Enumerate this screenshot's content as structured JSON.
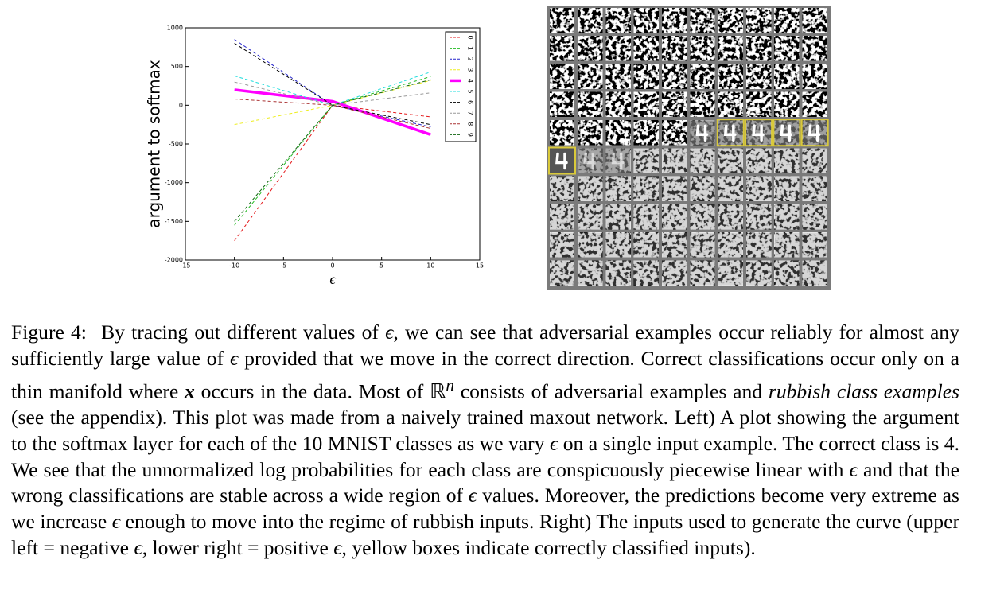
{
  "chart_data": {
    "type": "line",
    "ylabel": "argument to softmax",
    "xlabel": "ϵ",
    "x": [
      -10,
      0,
      10
    ],
    "series": [
      {
        "name": "0",
        "color": "#e41a1c",
        "values": [
          -1750,
          0,
          -150
        ]
      },
      {
        "name": "1",
        "color": "#22bb22",
        "values": [
          -1550,
          0,
          370
        ]
      },
      {
        "name": "2",
        "color": "#2222cc",
        "values": [
          850,
          0,
          -280
        ]
      },
      {
        "name": "3",
        "color": "#eeee22",
        "values": [
          -250,
          0,
          320
        ]
      },
      {
        "name": "4",
        "color": "#ff00ff",
        "values": [
          200,
          50,
          -380
        ]
      },
      {
        "name": "5",
        "color": "#22dddd",
        "values": [
          380,
          0,
          430
        ]
      },
      {
        "name": "6",
        "color": "#000000",
        "values": [
          800,
          0,
          -250
        ]
      },
      {
        "name": "7",
        "color": "#999999",
        "values": [
          300,
          0,
          160
        ]
      },
      {
        "name": "8",
        "color": "#aa3333",
        "values": [
          80,
          0,
          -300
        ]
      },
      {
        "name": "9",
        "color": "#116611",
        "values": [
          -1500,
          0,
          330
        ]
      }
    ],
    "highlight": "4",
    "xlim": [
      -15,
      15
    ],
    "xticks": [
      -15,
      -10,
      -5,
      0,
      5,
      10,
      15
    ],
    "ylim": [
      -2000,
      1000
    ],
    "yticks": [
      -2000,
      -1500,
      -1000,
      -500,
      0,
      500,
      1000
    ],
    "legend": "upper right"
  },
  "caption": {
    "parts": [
      "Figure 4:",
      "By tracing out different values of ",
      "ϵ",
      ", we can see that adversarial examples occur reliably for almost any sufficiently large value of ",
      "ϵ",
      " provided that we move in the correct direction. Correct classifications occur only on a thin manifold where ",
      "x",
      " occurs in the data. Most of ",
      "ℝ",
      "n",
      " consists of adversarial examples and ",
      "rubbish class examples",
      " (see the appendix). This plot was made from a naively trained maxout network. Left) A plot showing the argument to the softmax layer for each of the 10 MNIST classes as we vary ",
      "ϵ",
      " on a single input example. The correct class is 4. We see that the unnormalized log probabilities for each class are conspicuously piecewise linear with ",
      "ϵ",
      " and that the wrong classifications are stable across a wide region of ",
      "ϵ",
      " values. Moreover, the predictions become very extreme as we increase ",
      "ϵ",
      " enough to move into the regime of rubbish inputs. Right) The inputs used to generate the curve (upper left = negative ",
      "ϵ",
      ", lower right = positive ",
      "ϵ",
      ", yellow boxes indicate correctly classified inputs)."
    ]
  }
}
